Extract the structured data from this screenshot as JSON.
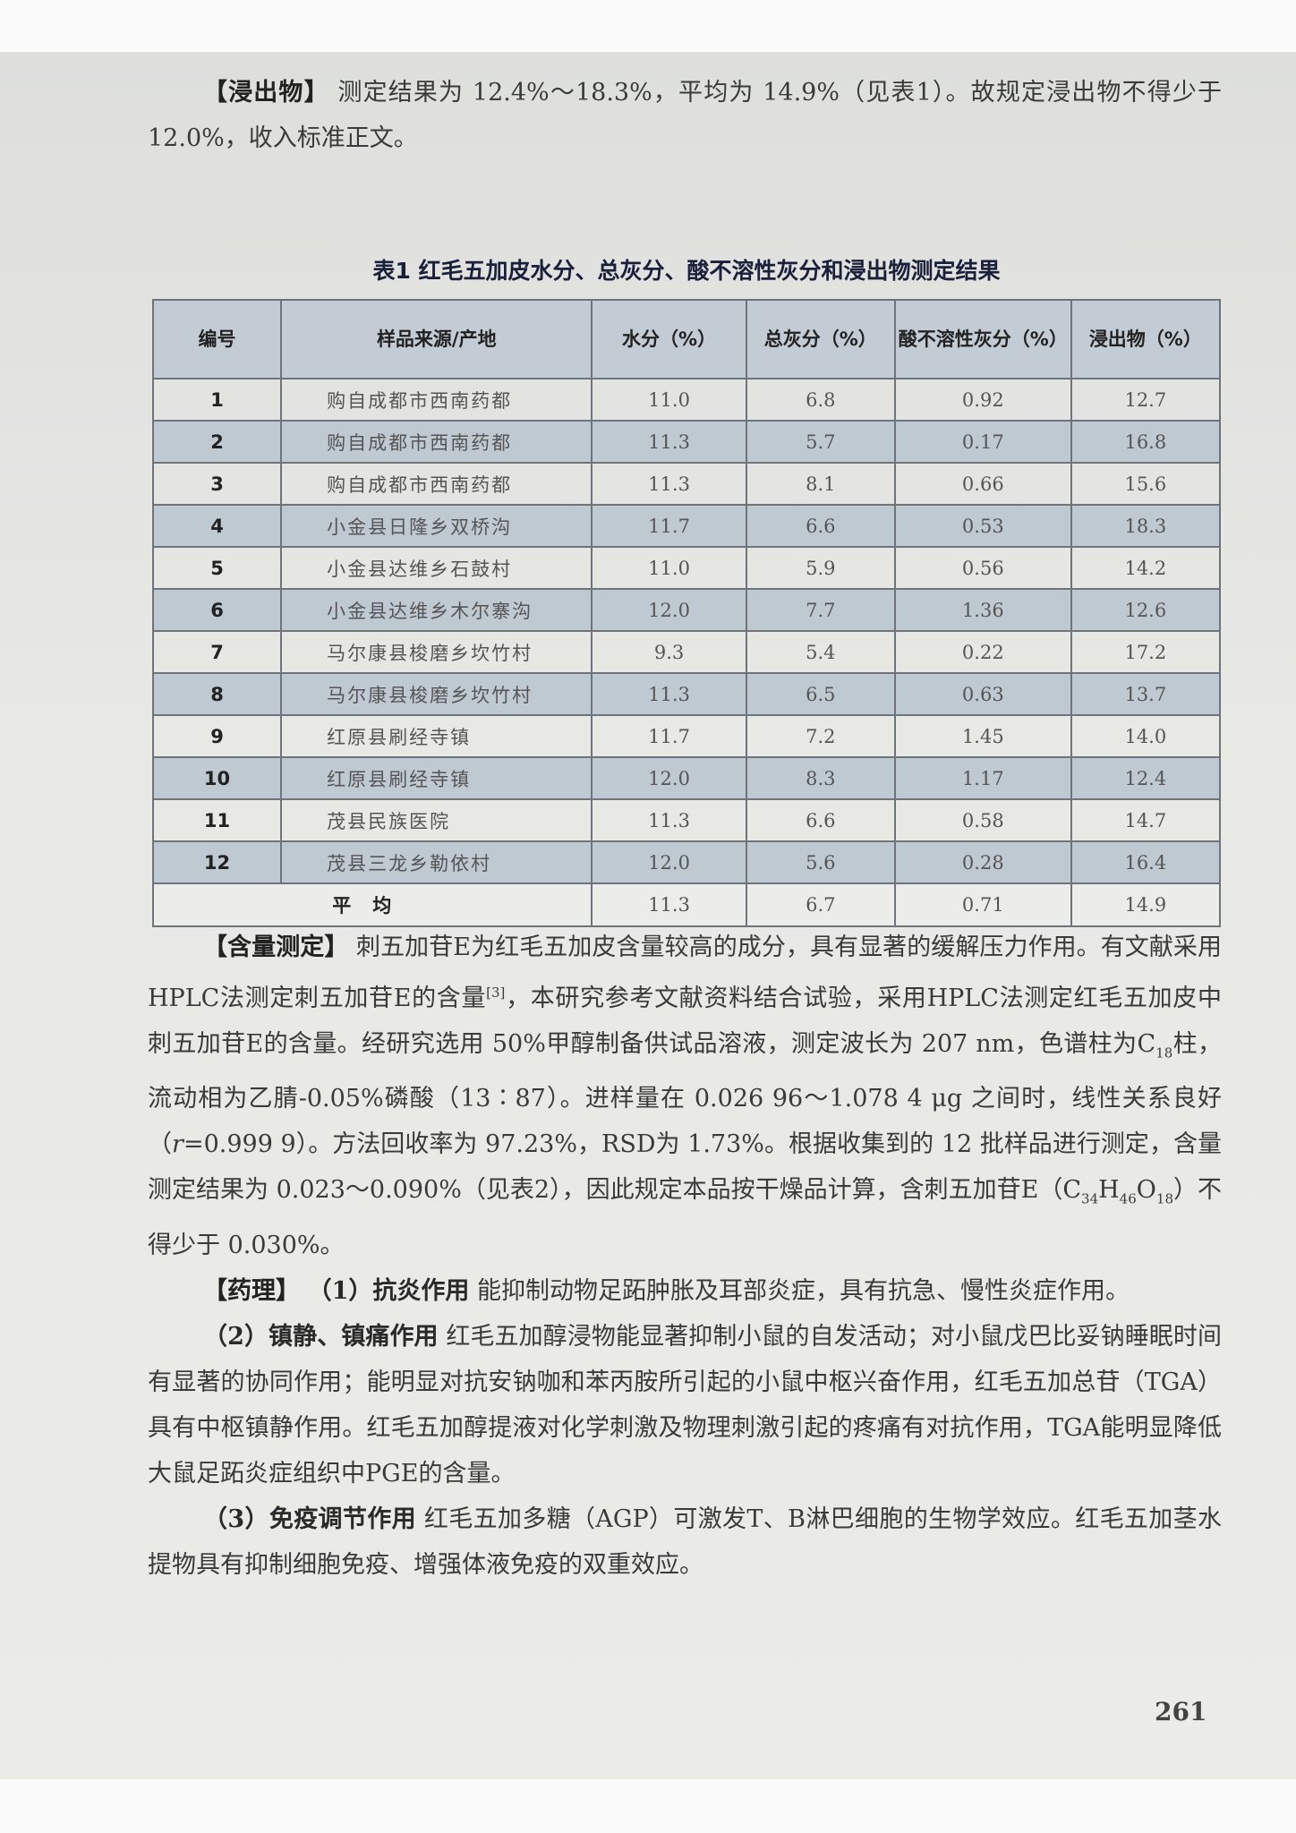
{
  "intro": {
    "heading": "【浸出物】",
    "text": "测定结果为 12.4%～18.3%，平均为 14.9%（见表1）。故规定浸出物不得少于12.0%，收入标准正文。"
  },
  "table": {
    "caption": "表1 红毛五加皮水分、总灰分、酸不溶性灰分和浸出物测定结果",
    "headers": [
      "编号",
      "样品来源/产地",
      "水分（%）",
      "总灰分（%）",
      "酸不溶性灰分（%）",
      "浸出物（%）"
    ],
    "rows": [
      {
        "no": "1",
        "source": "购自成都市西南药都",
        "water": "11.0",
        "ash": "6.8",
        "acid_ash": "0.92",
        "extract": "12.7"
      },
      {
        "no": "2",
        "source": "购自成都市西南药都",
        "water": "11.3",
        "ash": "5.7",
        "acid_ash": "0.17",
        "extract": "16.8"
      },
      {
        "no": "3",
        "source": "购自成都市西南药都",
        "water": "11.3",
        "ash": "8.1",
        "acid_ash": "0.66",
        "extract": "15.6"
      },
      {
        "no": "4",
        "source": "小金县日隆乡双桥沟",
        "water": "11.7",
        "ash": "6.6",
        "acid_ash": "0.53",
        "extract": "18.3"
      },
      {
        "no": "5",
        "source": "小金县达维乡石鼓村",
        "water": "11.0",
        "ash": "5.9",
        "acid_ash": "0.56",
        "extract": "14.2"
      },
      {
        "no": "6",
        "source": "小金县达维乡木尔寨沟",
        "water": "12.0",
        "ash": "7.7",
        "acid_ash": "1.36",
        "extract": "12.6"
      },
      {
        "no": "7",
        "source": "马尔康县梭磨乡坎竹村",
        "water": "9.3",
        "ash": "5.4",
        "acid_ash": "0.22",
        "extract": "17.2"
      },
      {
        "no": "8",
        "source": "马尔康县梭磨乡坎竹村",
        "water": "11.3",
        "ash": "6.5",
        "acid_ash": "0.63",
        "extract": "13.7"
      },
      {
        "no": "9",
        "source": "红原县刷经寺镇",
        "water": "11.7",
        "ash": "7.2",
        "acid_ash": "1.45",
        "extract": "14.0"
      },
      {
        "no": "10",
        "source": "红原县刷经寺镇",
        "water": "12.0",
        "ash": "8.3",
        "acid_ash": "1.17",
        "extract": "12.4"
      },
      {
        "no": "11",
        "source": "茂县民族医院",
        "water": "11.3",
        "ash": "6.6",
        "acid_ash": "0.58",
        "extract": "14.7"
      },
      {
        "no": "12",
        "source": "茂县三龙乡勒依村",
        "water": "12.0",
        "ash": "5.6",
        "acid_ash": "0.28",
        "extract": "16.4"
      }
    ],
    "average": {
      "label": "平均",
      "water": "11.3",
      "ash": "6.7",
      "acid_ash": "0.71",
      "extract": "14.9"
    }
  },
  "assay": {
    "heading": "【含量测定】",
    "text1": "刺五加苷E为红毛五加皮含量较高的成分，具有显著的缓解压力作用。有文献采用HPLC法测定刺五加苷E的含量",
    "ref": "[3]",
    "text2": "，本研究参考文献资料结合试验，采用HPLC法测定红毛五加皮中刺五加苷E的含量。经研究选用 50%甲醇制备供试品溶液，测定波长为 207 nm，色谱柱为C",
    "c18_sub": "18",
    "text3": "柱，流动相为乙腈-0.05%磷酸（13∶87）。进样量在 0.026 96～1.078 4 μg 之间时，线性关系良好（",
    "r_var": "r",
    "text4": "=0.999 9）。方法回收率为 97.23%，RSD为 1.73%。根据收集到的 12 批样品进行测定，含量测定结果为 0.023～0.090%（见表2），因此规定本品按干燥品计算，含刺五加苷E（C",
    "f_sub1": "34",
    "f_h": "H",
    "f_sub2": "46",
    "f_o": "O",
    "f_sub3": "18",
    "text5": "）不得少于 0.030%。"
  },
  "pharmacology": {
    "heading": "【药理】",
    "item1_title": "（1）抗炎作用",
    "item1_text": "能抑制动物足跖肿胀及耳部炎症，具有抗急、慢性炎症作用。",
    "item2_title": "（2）镇静、镇痛作用",
    "item2_text": "红毛五加醇浸物能显著抑制小鼠的自发活动；对小鼠戊巴比妥钠睡眠时间有显著的协同作用；能明显对抗安钠咖和苯丙胺所引起的小鼠中枢兴奋作用，红毛五加总苷（TGA）具有中枢镇静作用。红毛五加醇提液对化学刺激及物理刺激引起的疼痛有对抗作用，TGA能明显降低大鼠足跖炎症组织中PGE的含量。",
    "item3_title": "（3）免疫调节作用",
    "item3_text": "红毛五加多糖（AGP）可激发T、B淋巴细胞的生物学效应。红毛五加茎水提物具有抑制细胞免疫、增强体液免疫的双重效应。"
  },
  "page_number": "261"
}
